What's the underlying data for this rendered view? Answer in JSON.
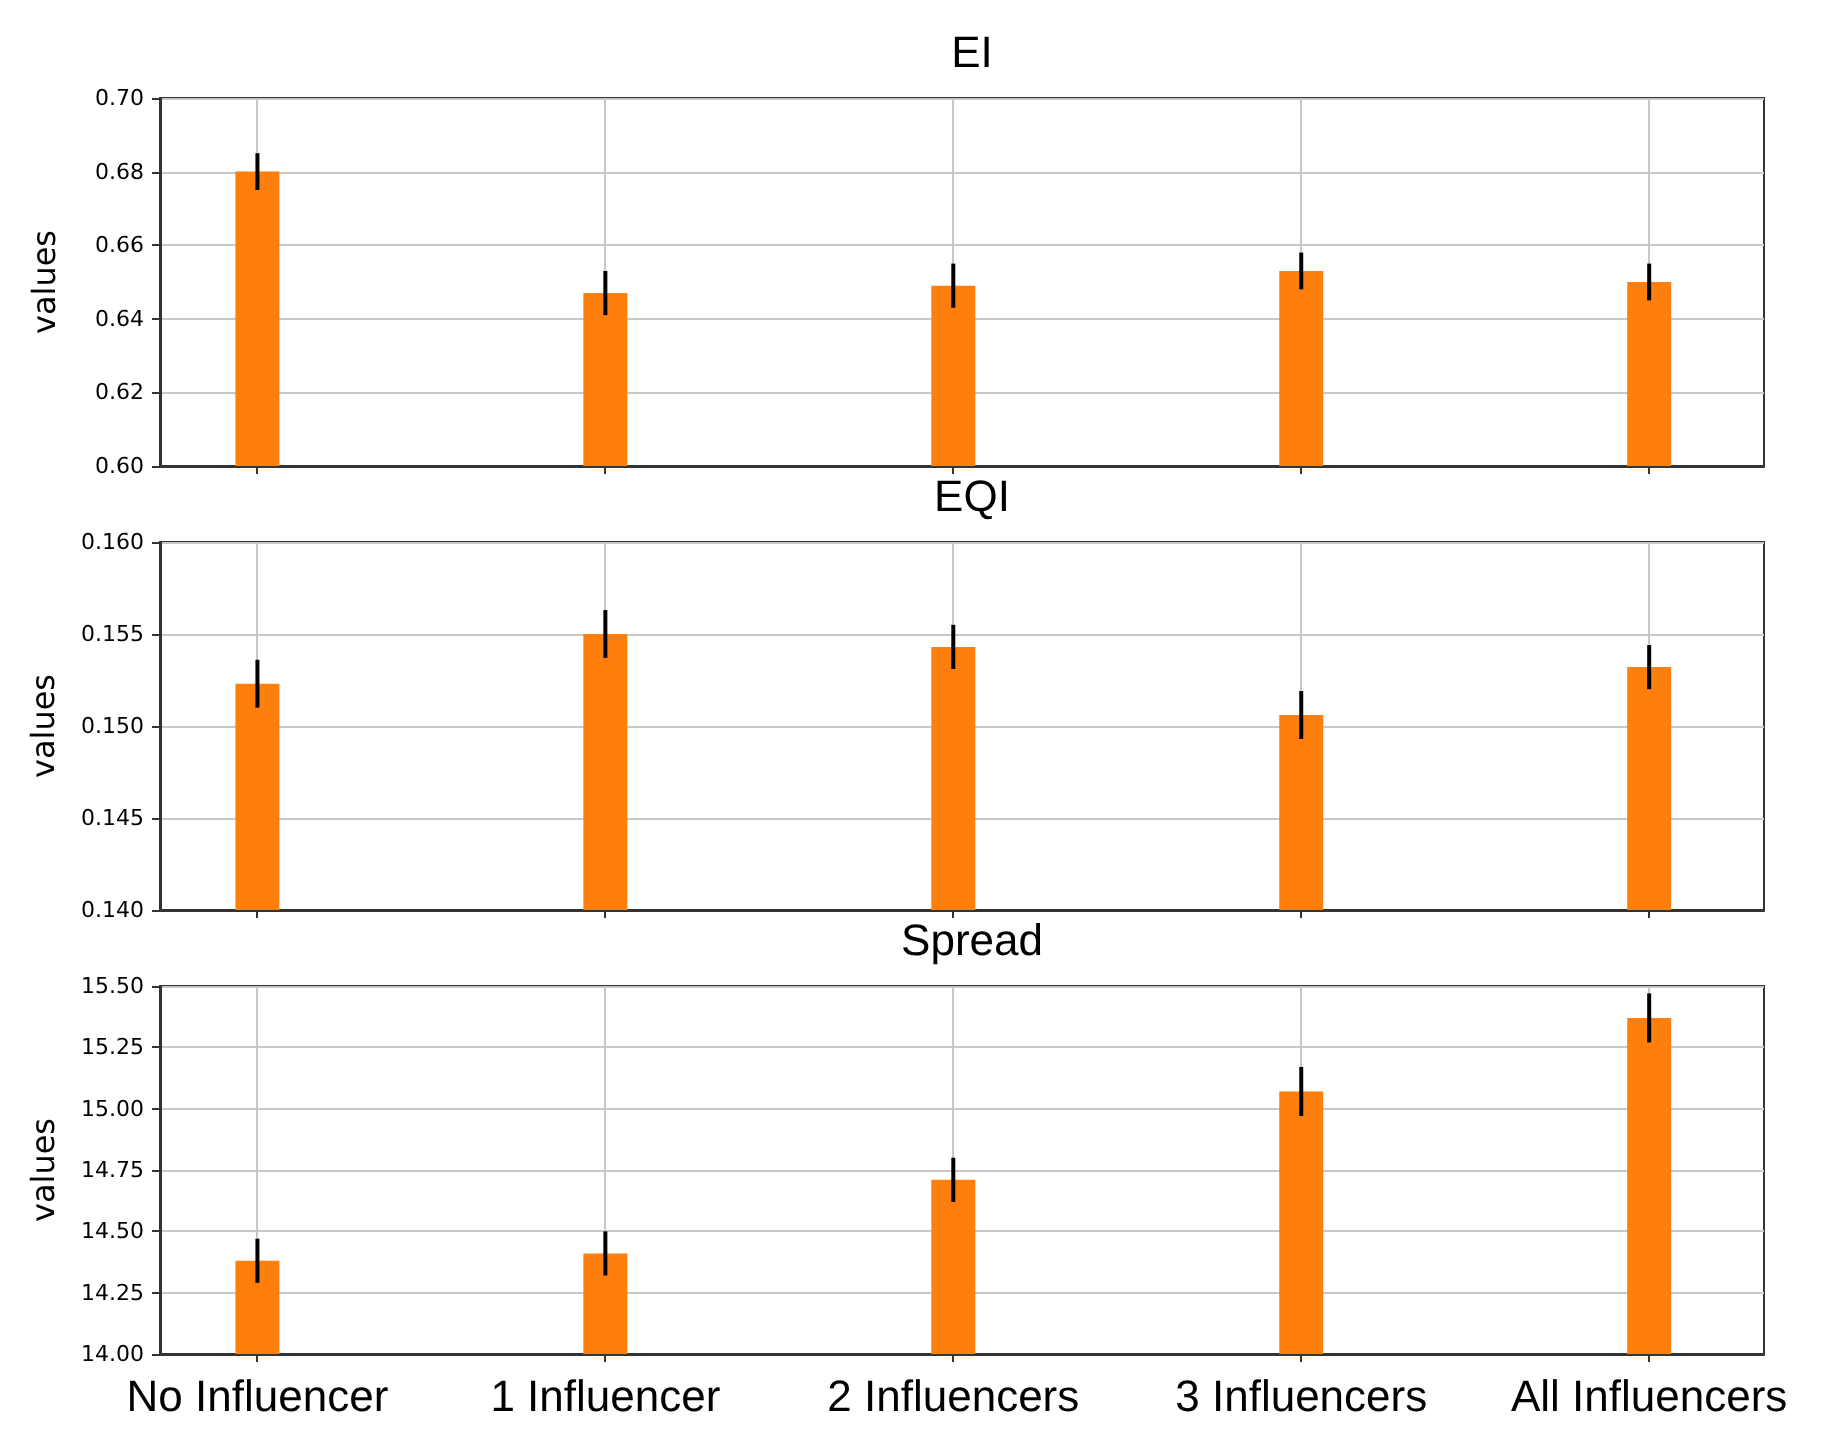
{
  "chart_data": [
    {
      "type": "bar",
      "title": "EI",
      "ylabel": "values",
      "categories": [
        null,
        null,
        null,
        null,
        null
      ],
      "values": [
        0.68,
        0.647,
        0.649,
        0.653,
        0.65
      ],
      "errors": [
        0.005,
        0.006,
        0.006,
        0.005,
        0.005
      ],
      "color": "#ff7f0e",
      "ylim": [
        0.6,
        0.7
      ],
      "yticks": [
        {
          "value": 0.6,
          "label": "0.60"
        },
        {
          "value": 0.62,
          "label": "0.62"
        },
        {
          "value": 0.64,
          "label": "0.64"
        },
        {
          "value": 0.66,
          "label": "0.66"
        },
        {
          "value": 0.68,
          "label": "0.68"
        },
        {
          "value": 0.7,
          "label": "0.70"
        }
      ],
      "grid": true,
      "tick_labels": "y"
    },
    {
      "type": "bar",
      "title": "EQI",
      "ylabel": "values",
      "categories": [
        null,
        null,
        null,
        null,
        null
      ],
      "values": [
        0.1523,
        0.155,
        0.1543,
        0.1506,
        0.1532
      ],
      "errors": [
        0.0013,
        0.0013,
        0.0012,
        0.0013,
        0.0012
      ],
      "color": "#ff7f0e",
      "ylim": [
        0.14,
        0.16
      ],
      "yticks": [
        {
          "value": 0.14,
          "label": "0.140"
        },
        {
          "value": 0.145,
          "label": "0.145"
        },
        {
          "value": 0.15,
          "label": "0.150"
        },
        {
          "value": 0.155,
          "label": "0.155"
        },
        {
          "value": 0.16,
          "label": "0.160"
        }
      ],
      "grid": true,
      "tick_labels": "y"
    },
    {
      "type": "bar",
      "title": "Spread",
      "ylabel": "values",
      "categories": [
        "No Influencer",
        "1 Influencer",
        "2 Influencers",
        "3 Influencers",
        "All Influencers"
      ],
      "values": [
        14.38,
        14.41,
        14.71,
        15.07,
        15.37
      ],
      "errors": [
        0.09,
        0.09,
        0.09,
        0.1,
        0.1
      ],
      "color": "#ff7f0e",
      "ylim": [
        14,
        15.5
      ],
      "yticks": [
        {
          "value": 14,
          "label": "14.00"
        },
        {
          "value": 14.25,
          "label": "14.25"
        },
        {
          "value": 14.5,
          "label": "14.50"
        },
        {
          "value": 14.75,
          "label": "14.75"
        },
        {
          "value": 15,
          "label": "15.00"
        },
        {
          "value": 15.25,
          "label": "15.25"
        },
        {
          "value": 15.5,
          "label": "15.50"
        }
      ],
      "grid": true
    }
  ]
}
